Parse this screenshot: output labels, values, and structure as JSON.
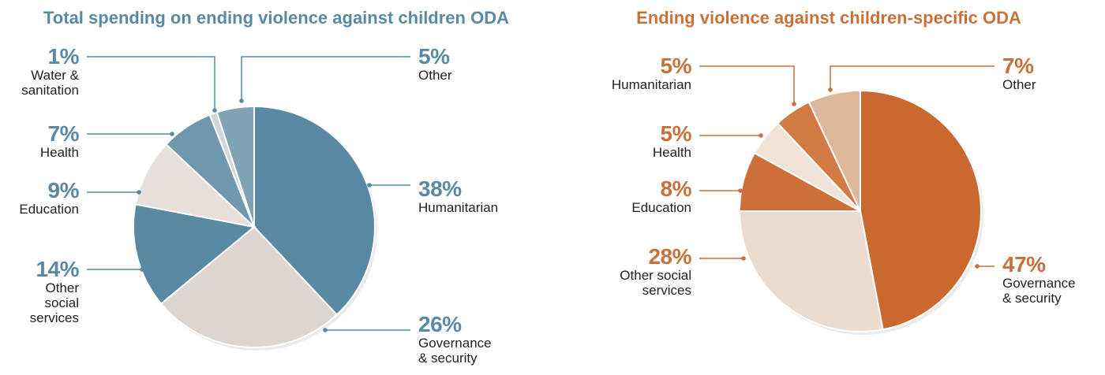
{
  "chart_data": [
    {
      "type": "pie",
      "title": "Total spending on ending violence against children ODA",
      "colors": {
        "primary": "#5a8aa3",
        "light": "#ddd5cf"
      },
      "slices": [
        {
          "label": "Humanitarian",
          "pct_label": "38%",
          "value": 38,
          "color": "#5a8aa3"
        },
        {
          "label": "Governance\n& security",
          "pct_label": "26%",
          "value": 26,
          "color": "#ddd5cf"
        },
        {
          "label": "Other\nsocial\nservices",
          "pct_label": "14%",
          "value": 14,
          "color": "#5a8aa3"
        },
        {
          "label": "Education",
          "pct_label": "9%",
          "value": 9,
          "color": "#e6dfda"
        },
        {
          "label": "Health",
          "pct_label": "7%",
          "value": 7,
          "color": "#6f98ae"
        },
        {
          "label": "Water &\nsanitation",
          "pct_label": "1%",
          "value": 1,
          "color": "#cfd6da"
        },
        {
          "label": "Other",
          "pct_label": "5%",
          "value": 5,
          "color": "#7fa2b5"
        }
      ]
    },
    {
      "type": "pie",
      "title": "Ending violence against children-specific ODA",
      "colors": {
        "primary": "#c9713a",
        "light": "#ead7c8"
      },
      "slices": [
        {
          "label": "Governance\n& security",
          "pct_label": "47%",
          "value": 47,
          "color": "#c9692f"
        },
        {
          "label": "Other social\nservices",
          "pct_label": "28%",
          "value": 28,
          "color": "#ecdccf"
        },
        {
          "label": "Education",
          "pct_label": "8%",
          "value": 8,
          "color": "#cd6f38"
        },
        {
          "label": "Health",
          "pct_label": "5%",
          "value": 5,
          "color": "#f0e2d6"
        },
        {
          "label": "Humanitarian",
          "pct_label": "5%",
          "value": 5,
          "color": "#d27a44"
        },
        {
          "label": "Other",
          "pct_label": "7%",
          "value": 7,
          "color": "#ddb79c"
        }
      ]
    }
  ]
}
